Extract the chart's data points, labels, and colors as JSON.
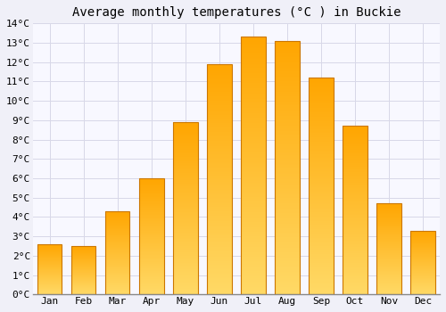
{
  "title": "Average monthly temperatures (°C ) in Buckie",
  "months": [
    "Jan",
    "Feb",
    "Mar",
    "Apr",
    "May",
    "Jun",
    "Jul",
    "Aug",
    "Sep",
    "Oct",
    "Nov",
    "Dec"
  ],
  "values": [
    2.6,
    2.5,
    4.3,
    6.0,
    8.9,
    11.9,
    13.3,
    13.1,
    11.2,
    8.7,
    4.7,
    3.3
  ],
  "bar_color_top": "#FFA500",
  "bar_color_bottom": "#FFD966",
  "bar_edge_color": "#CC7700",
  "background_color": "#F0F0F8",
  "plot_bg_color": "#F8F8FF",
  "grid_color": "#D8D8E8",
  "ylim": [
    0,
    14
  ],
  "yticks": [
    0,
    1,
    2,
    3,
    4,
    5,
    6,
    7,
    8,
    9,
    10,
    11,
    12,
    13,
    14
  ],
  "title_fontsize": 10,
  "tick_fontsize": 8,
  "title_font": "monospace",
  "tick_font": "monospace",
  "bar_width": 0.72
}
